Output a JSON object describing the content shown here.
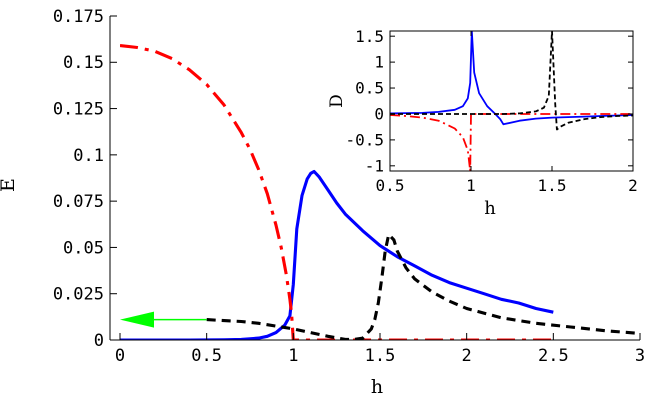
{
  "chart_data": [
    {
      "id": "main",
      "type": "line",
      "xlabel": "h",
      "ylabel": "E",
      "xlim": [
        0,
        3
      ],
      "ylim": [
        0,
        0.175
      ],
      "xticks": [
        0,
        0.5,
        1,
        1.5,
        2,
        2.5,
        3
      ],
      "xtick_labels": [
        "0",
        "0.5",
        "1",
        "1.5",
        "2",
        "2.5",
        "3"
      ],
      "yticks": [
        0,
        0.025,
        0.05,
        0.075,
        0.1,
        0.125,
        0.15,
        0.175
      ],
      "ytick_labels": [
        "0",
        "0.025",
        "0.05",
        "0.075",
        "0.1",
        "0.125",
        "0.15",
        "0.175"
      ],
      "grid": false,
      "series": [
        {
          "style": "solid",
          "color": "#0000ff",
          "x": [
            0,
            0.2,
            0.4,
            0.6,
            0.7,
            0.8,
            0.85,
            0.9,
            0.95,
            0.98,
            1.0,
            1.02,
            1.05,
            1.08,
            1.1,
            1.12,
            1.15,
            1.2,
            1.25,
            1.3,
            1.4,
            1.5,
            1.6,
            1.7,
            1.8,
            1.9,
            2.0,
            2.1,
            2.2,
            2.3,
            2.4,
            2.5
          ],
          "y": [
            0,
            0,
            0,
            0.0001,
            0.0003,
            0.001,
            0.002,
            0.004,
            0.008,
            0.013,
            0.03,
            0.06,
            0.078,
            0.087,
            0.09,
            0.091,
            0.088,
            0.081,
            0.074,
            0.068,
            0.059,
            0.051,
            0.045,
            0.04,
            0.035,
            0.031,
            0.028,
            0.025,
            0.022,
            0.02,
            0.017,
            0.015
          ]
        },
        {
          "style": "dashdot",
          "color": "#ff0000",
          "x": [
            0,
            0.1,
            0.2,
            0.3,
            0.4,
            0.5,
            0.6,
            0.7,
            0.75,
            0.8,
            0.85,
            0.9,
            0.93,
            0.96,
            0.98,
            0.99,
            1.0,
            1.5,
            2.0,
            2.5
          ],
          "y": [
            0.159,
            0.158,
            0.156,
            0.152,
            0.146,
            0.138,
            0.127,
            0.112,
            0.103,
            0.092,
            0.079,
            0.062,
            0.05,
            0.035,
            0.022,
            0.014,
            0,
            0,
            0,
            0
          ]
        },
        {
          "style": "dashed",
          "color": "#000000",
          "x": [
            0.5,
            0.6,
            0.7,
            0.8,
            0.9,
            1.0,
            1.1,
            1.2,
            1.3,
            1.35,
            1.4,
            1.45,
            1.47,
            1.49,
            1.51,
            1.53,
            1.55,
            1.58,
            1.6,
            1.65,
            1.7,
            1.8,
            1.9,
            2.0,
            2.2,
            2.4,
            2.6,
            2.8,
            3.0
          ],
          "y": [
            0.011,
            0.0105,
            0.01,
            0.009,
            0.0075,
            0.006,
            0.004,
            0.002,
            0.0003,
            0.0003,
            0.001,
            0.006,
            0.011,
            0.02,
            0.033,
            0.048,
            0.057,
            0.054,
            0.048,
            0.039,
            0.033,
            0.026,
            0.021,
            0.017,
            0.012,
            0.009,
            0.007,
            0.005,
            0.0035
          ]
        }
      ],
      "annotation": {
        "type": "arrow",
        "color": "#00ff00",
        "direction": "left",
        "from": [
          0.5,
          0.011
        ],
        "to": [
          0,
          0.011
        ]
      }
    },
    {
      "id": "inset",
      "type": "line",
      "xlabel": "h",
      "ylabel": "D",
      "xlim": [
        0.5,
        2
      ],
      "ylim": [
        -1.1,
        1.6
      ],
      "xticks": [
        0.5,
        1,
        1.5,
        2
      ],
      "xtick_labels": [
        "0.5",
        "1",
        "1.5",
        "2"
      ],
      "yticks": [
        -1,
        -0.5,
        0,
        0.5,
        1,
        1.5
      ],
      "ytick_labels": [
        "-1",
        "-0.5",
        "0",
        "0.5",
        "1",
        "1.5"
      ],
      "grid": false,
      "series": [
        {
          "style": "solid",
          "color": "#0000ff",
          "x": [
            0.5,
            0.7,
            0.8,
            0.9,
            0.95,
            0.98,
            0.995,
            1.005,
            1.02,
            1.05,
            1.1,
            1.15,
            1.18,
            1.2,
            1.3,
            1.4,
            1.5,
            1.6,
            1.7,
            1.8,
            1.9,
            2.0
          ],
          "y": [
            0.01,
            0.02,
            0.04,
            0.08,
            0.15,
            0.3,
            0.6,
            1.6,
            0.8,
            0.4,
            0.15,
            0.0,
            -0.1,
            -0.2,
            -0.13,
            -0.09,
            -0.07,
            -0.06,
            -0.05,
            -0.04,
            -0.03,
            -0.02
          ]
        },
        {
          "style": "dashdot",
          "color": "#ff0000",
          "x": [
            0.5,
            0.6,
            0.7,
            0.8,
            0.9,
            0.95,
            0.98,
            0.995,
            1.0,
            1.05,
            1.5,
            2.0
          ],
          "y": [
            -0.02,
            -0.04,
            -0.07,
            -0.13,
            -0.28,
            -0.45,
            -0.7,
            -1.1,
            0,
            0,
            0,
            0
          ]
        },
        {
          "style": "dashed",
          "color": "#000000",
          "x": [
            0.5,
            0.8,
            1.0,
            1.2,
            1.3,
            1.4,
            1.45,
            1.48,
            1.5,
            1.52,
            1.53,
            1.55,
            1.6,
            1.7,
            1.8,
            1.9,
            2.0
          ],
          "y": [
            0.0,
            0.0,
            0.0,
            0.0,
            0.01,
            0.05,
            0.12,
            0.35,
            1.6,
            0.2,
            -0.3,
            -0.25,
            -0.17,
            -0.1,
            -0.06,
            -0.04,
            -0.03
          ]
        }
      ]
    }
  ]
}
